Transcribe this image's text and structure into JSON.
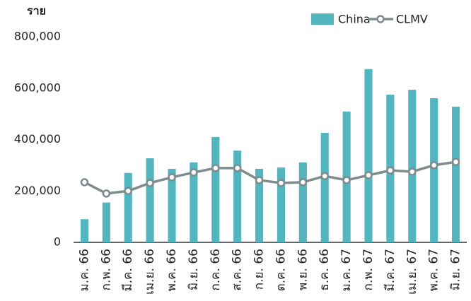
{
  "chart_data": {
    "type": "bar_line",
    "y_axis_label": "ราย",
    "categories": [
      "ม.ค. 66",
      "ก.พ. 66",
      "มี.ค. 66",
      "เม.ย. 66",
      "พ.ค. 66",
      "มิ.ย. 66",
      "ก.ค. 66",
      "ส.ค. 66",
      "ก.ย. 66",
      "ต.ค. 66",
      "พ.ย. 66",
      "ธ.ค. 66",
      "ม.ค. 67",
      "ก.พ. 67",
      "มี.ค. 67",
      "เม.ย. 67",
      "พ.ค. 67",
      "มิ.ย. 67"
    ],
    "series": [
      {
        "name": "China",
        "type": "bar",
        "color": "#52b5bf",
        "values": [
          90000,
          155000,
          270000,
          327000,
          286000,
          311000,
          410000,
          357000,
          286000,
          291000,
          311000,
          426000,
          509000,
          674000,
          575000,
          594000,
          561000,
          528000
        ]
      },
      {
        "name": "CLMV",
        "type": "line",
        "color": "#7f8b8c",
        "values": [
          234000,
          190000,
          200000,
          231000,
          253000,
          272000,
          289000,
          289000,
          242000,
          231000,
          234000,
          258000,
          242000,
          261000,
          280000,
          275000,
          300000,
          313000
        ]
      }
    ],
    "ylim": [
      0,
      800000
    ],
    "yticks": [
      0,
      {
        "value": 200000,
        "label": "200,000"
      },
      {
        "value": 400000,
        "label": "400,000"
      },
      {
        "value": 600000,
        "label": "600,000"
      },
      {
        "value": 800000,
        "label": "800,000"
      }
    ],
    "grid": false,
    "legend": "top-right"
  }
}
